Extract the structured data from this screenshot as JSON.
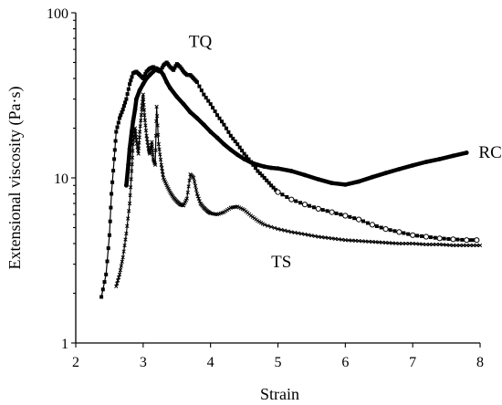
{
  "chart_data": {
    "type": "line",
    "title": "",
    "xlabel": "Strain",
    "ylabel": "Extensional viscosity (Pa·s)",
    "xlim": [
      2,
      8
    ],
    "ylim": [
      1,
      100
    ],
    "y_scale": "log",
    "x_ticks": [
      2,
      3,
      4,
      5,
      6,
      7,
      8
    ],
    "y_ticks": [
      1,
      10,
      100
    ],
    "x_tick_labels": [
      "2",
      "3",
      "4",
      "5",
      "6",
      "7",
      "8"
    ],
    "y_tick_labels": [
      "1",
      "10",
      "100"
    ],
    "grid": false,
    "legend": "none (series labeled directly on plot)",
    "series": [
      {
        "name": "TQ",
        "color": "#000000",
        "marker": "filled-square",
        "points": [
          [
            2.38,
            1.9
          ],
          [
            2.45,
            2.6
          ],
          [
            2.5,
            4.5
          ],
          [
            2.53,
            8.0
          ],
          [
            2.57,
            13
          ],
          [
            2.6,
            19
          ],
          [
            2.65,
            23
          ],
          [
            2.7,
            26
          ],
          [
            2.75,
            30
          ],
          [
            2.8,
            37
          ],
          [
            2.85,
            43
          ],
          [
            2.9,
            44
          ],
          [
            2.95,
            42
          ],
          [
            3.0,
            40
          ],
          [
            3.05,
            44
          ],
          [
            3.1,
            46
          ],
          [
            3.15,
            47
          ],
          [
            3.2,
            45
          ],
          [
            3.25,
            44
          ],
          [
            3.3,
            48
          ],
          [
            3.35,
            50
          ],
          [
            3.4,
            47
          ],
          [
            3.45,
            45
          ],
          [
            3.5,
            49
          ],
          [
            3.55,
            47
          ],
          [
            3.6,
            44
          ],
          [
            3.65,
            42
          ],
          [
            3.7,
            42
          ],
          [
            3.75,
            40
          ],
          [
            3.8,
            38
          ],
          [
            3.9,
            32
          ],
          [
            4.0,
            28
          ],
          [
            4.1,
            24
          ],
          [
            4.2,
            21
          ],
          [
            4.3,
            18
          ],
          [
            4.4,
            16
          ],
          [
            4.5,
            14
          ],
          [
            4.6,
            12.5
          ],
          [
            4.7,
            11
          ],
          [
            4.8,
            10
          ],
          [
            4.9,
            9.0
          ],
          [
            5.0,
            8.2
          ],
          [
            5.2,
            7.4
          ],
          [
            5.4,
            6.9
          ],
          [
            5.6,
            6.5
          ],
          [
            5.8,
            6.2
          ],
          [
            6.0,
            5.9
          ],
          [
            6.2,
            5.6
          ],
          [
            6.4,
            5.2
          ],
          [
            6.6,
            4.9
          ],
          [
            6.8,
            4.7
          ],
          [
            7.0,
            4.5
          ],
          [
            7.2,
            4.4
          ],
          [
            7.4,
            4.3
          ],
          [
            7.6,
            4.25
          ],
          [
            7.8,
            4.2
          ],
          [
            7.95,
            4.2
          ]
        ]
      },
      {
        "name": "RC",
        "color": "#000000",
        "marker": "thick-line",
        "points": [
          [
            2.75,
            9.0
          ],
          [
            2.78,
            12
          ],
          [
            2.8,
            15
          ],
          [
            2.83,
            19
          ],
          [
            2.85,
            22
          ],
          [
            2.88,
            26
          ],
          [
            2.9,
            30
          ],
          [
            2.95,
            34
          ],
          [
            3.0,
            37
          ],
          [
            3.05,
            40
          ],
          [
            3.1,
            42
          ],
          [
            3.15,
            44
          ],
          [
            3.2,
            46
          ],
          [
            3.25,
            45
          ],
          [
            3.3,
            42
          ],
          [
            3.35,
            38
          ],
          [
            3.4,
            35
          ],
          [
            3.5,
            31
          ],
          [
            3.6,
            28
          ],
          [
            3.7,
            25
          ],
          [
            3.8,
            23
          ],
          [
            3.9,
            21
          ],
          [
            4.0,
            19
          ],
          [
            4.1,
            17.5
          ],
          [
            4.2,
            16
          ],
          [
            4.3,
            14.8
          ],
          [
            4.4,
            13.8
          ],
          [
            4.5,
            13
          ],
          [
            4.6,
            12.4
          ],
          [
            4.7,
            12
          ],
          [
            4.8,
            11.7
          ],
          [
            4.9,
            11.5
          ],
          [
            5.0,
            11.4
          ],
          [
            5.2,
            11.0
          ],
          [
            5.4,
            10.4
          ],
          [
            5.6,
            9.8
          ],
          [
            5.8,
            9.3
          ],
          [
            6.0,
            9.1
          ],
          [
            6.2,
            9.5
          ],
          [
            6.4,
            10.1
          ],
          [
            6.6,
            10.7
          ],
          [
            6.8,
            11.3
          ],
          [
            7.0,
            11.9
          ],
          [
            7.2,
            12.5
          ],
          [
            7.4,
            13.0
          ],
          [
            7.6,
            13.6
          ],
          [
            7.8,
            14.2
          ]
        ]
      },
      {
        "name": "TS",
        "color": "#000000",
        "marker": "cross",
        "points": [
          [
            2.6,
            2.2
          ],
          [
            2.65,
            2.6
          ],
          [
            2.7,
            3.3
          ],
          [
            2.75,
            4.6
          ],
          [
            2.8,
            7.0
          ],
          [
            2.83,
            11
          ],
          [
            2.85,
            16
          ],
          [
            2.88,
            20
          ],
          [
            2.9,
            17
          ],
          [
            2.93,
            14
          ],
          [
            2.95,
            19
          ],
          [
            2.98,
            26
          ],
          [
            3.0,
            32
          ],
          [
            3.02,
            24
          ],
          [
            3.05,
            18
          ],
          [
            3.08,
            15
          ],
          [
            3.1,
            14
          ],
          [
            3.13,
            16.5
          ],
          [
            3.15,
            13
          ],
          [
            3.18,
            12
          ],
          [
            3.2,
            27
          ],
          [
            3.23,
            16
          ],
          [
            3.27,
            12
          ],
          [
            3.3,
            10
          ],
          [
            3.35,
            9.0
          ],
          [
            3.4,
            8.2
          ],
          [
            3.45,
            7.6
          ],
          [
            3.5,
            7.2
          ],
          [
            3.55,
            6.9
          ],
          [
            3.6,
            6.8
          ],
          [
            3.65,
            7.5
          ],
          [
            3.7,
            10.5
          ],
          [
            3.75,
            10.0
          ],
          [
            3.8,
            8.0
          ],
          [
            3.85,
            7.0
          ],
          [
            3.9,
            6.6
          ],
          [
            3.95,
            6.3
          ],
          [
            4.0,
            6.1
          ],
          [
            4.1,
            6.0
          ],
          [
            4.2,
            6.2
          ],
          [
            4.3,
            6.6
          ],
          [
            4.4,
            6.7
          ],
          [
            4.5,
            6.4
          ],
          [
            4.6,
            5.9
          ],
          [
            4.7,
            5.5
          ],
          [
            4.8,
            5.2
          ],
          [
            5.0,
            4.9
          ],
          [
            5.2,
            4.7
          ],
          [
            5.4,
            4.55
          ],
          [
            5.6,
            4.4
          ],
          [
            5.8,
            4.3
          ],
          [
            6.0,
            4.2
          ],
          [
            6.2,
            4.15
          ],
          [
            6.4,
            4.1
          ],
          [
            6.6,
            4.05
          ],
          [
            6.8,
            4.0
          ],
          [
            7.0,
            4.0
          ],
          [
            7.2,
            3.95
          ],
          [
            7.4,
            3.95
          ],
          [
            7.6,
            3.9
          ],
          [
            7.8,
            3.9
          ],
          [
            8.0,
            3.9
          ]
        ]
      }
    ],
    "annotations": [
      {
        "text": "TQ",
        "x": 3.85,
        "y": 67
      },
      {
        "text": "RC",
        "x": 8.15,
        "y": 14.3
      },
      {
        "text": "TS",
        "x": 5.05,
        "y": 3.1
      }
    ]
  }
}
